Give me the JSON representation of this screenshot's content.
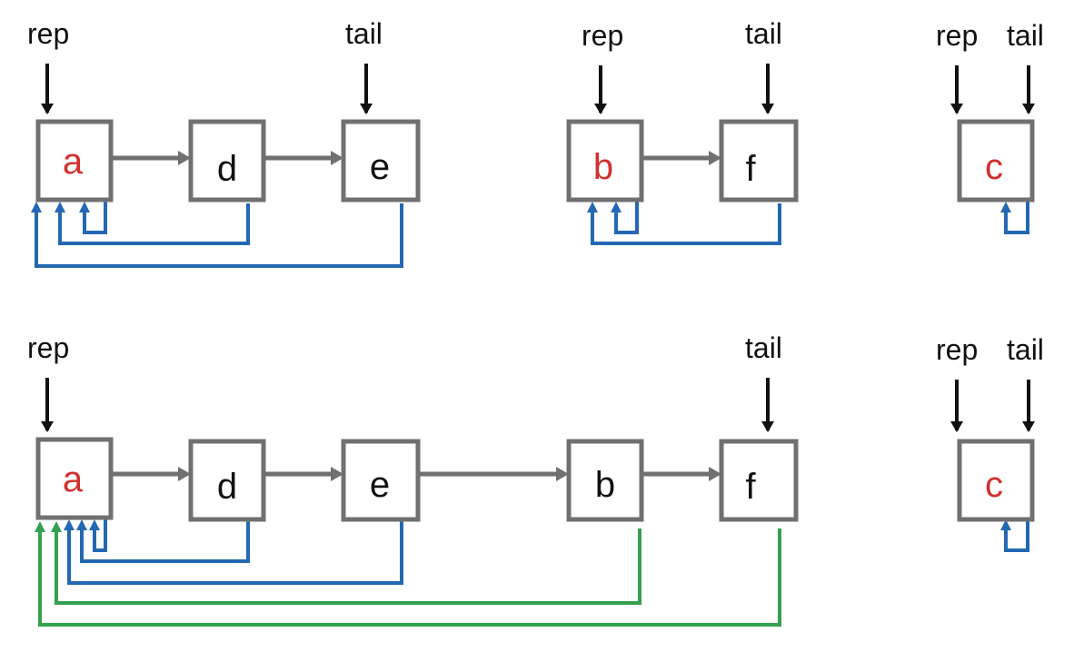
{
  "labels": {
    "rep": "rep",
    "tail": "tail"
  },
  "colors": {
    "representative_text": "#d0312d",
    "member_text": "#111111",
    "node_border": "#707070",
    "next_arrow": "#707070",
    "pointer_arrow": "#111111",
    "rep_link_original": "#2368b3",
    "rep_link_updated": "#34a050"
  },
  "before": {
    "sets": [
      {
        "id": "set-a",
        "rep": "a",
        "tail": "e",
        "members": [
          "a",
          "d",
          "e"
        ]
      },
      {
        "id": "set-b",
        "rep": "b",
        "tail": "f",
        "members": [
          "b",
          "f"
        ]
      },
      {
        "id": "set-c",
        "rep": "c",
        "tail": "c",
        "members": [
          "c"
        ]
      }
    ]
  },
  "after": {
    "sets": [
      {
        "id": "set-a",
        "rep": "a",
        "tail": "f",
        "members": [
          "a",
          "d",
          "e",
          "b",
          "f"
        ]
      },
      {
        "id": "set-c",
        "rep": "c",
        "tail": "c",
        "members": [
          "c"
        ]
      }
    ]
  }
}
